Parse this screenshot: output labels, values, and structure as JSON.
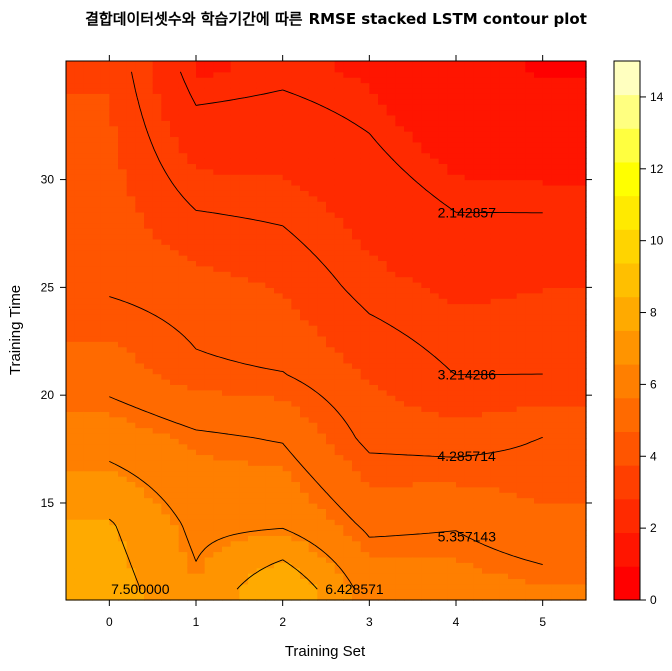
{
  "chart_data": {
    "type": "heatmap",
    "title_korean": "결합데이터셋수와 학습기간에 따른",
    "title_english": "RMSE stacked LSTM contour plot",
    "xlabel": "Training Set",
    "ylabel": "Training Time",
    "x_ticks": [
      0,
      1,
      2,
      3,
      4,
      5
    ],
    "y_ticks": [
      15,
      20,
      25,
      30
    ],
    "colorbar_ticks": [
      0,
      2,
      4,
      6,
      8,
      10,
      12,
      14
    ],
    "xlim": [
      -0.5,
      5.5
    ],
    "ylim": [
      10.5,
      35.5
    ],
    "colorbar_range": [
      0,
      15
    ],
    "colorbar_colors": [
      "#FF0000",
      "#FF1500",
      "#FF2A00",
      "#FF3F00",
      "#FF5500",
      "#FF6A00",
      "#FF7F00",
      "#FF9400",
      "#FFAA00",
      "#FFBF00",
      "#FFD400",
      "#FFEA00",
      "#FFFF00",
      "#FFFF40",
      "#FFFF80",
      "#FFFFBF"
    ],
    "contour_levels": [
      "2.142857",
      "3.214286",
      "4.285714",
      "5.357143",
      "6.428571",
      "7.500000"
    ],
    "x": [
      0,
      1,
      2,
      3,
      4,
      5
    ],
    "y": [
      11,
      14,
      18,
      21,
      25,
      35
    ],
    "z": [
      [
        8.0,
        6.6,
        8.5,
        6.0,
        5.9,
        5.7
      ],
      [
        7.6,
        6.2,
        6.3,
        5.2,
        5.3,
        4.8
      ],
      [
        6.0,
        5.5,
        5.3,
        4.1,
        4.0,
        4.3
      ],
      [
        5.0,
        4.4,
        4.3,
        3.7,
        3.2,
        3.2
      ],
      [
        4.2,
        4.0,
        3.7,
        3.0,
        2.7,
        2.8
      ],
      [
        3.7,
        1.8,
        2.0,
        1.8,
        1.1,
        0.9
      ]
    ]
  }
}
